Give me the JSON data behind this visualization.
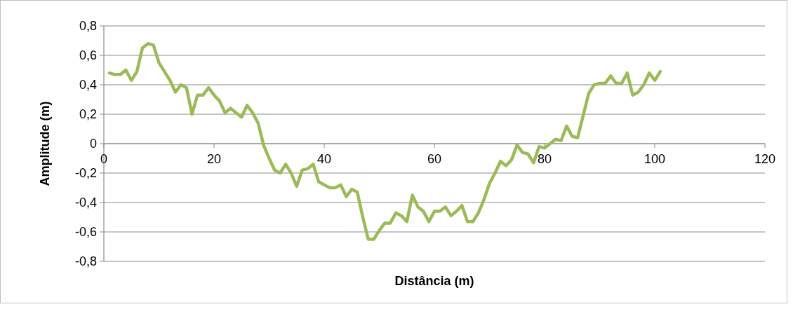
{
  "chart_data": {
    "type": "line",
    "xlabel": "Distância (m)",
    "ylabel": "Amplitude (m)",
    "x": [
      1,
      2,
      3,
      4,
      5,
      6,
      7,
      8,
      9,
      10,
      11,
      12,
      13,
      14,
      15,
      16,
      17,
      18,
      19,
      20,
      21,
      22,
      23,
      24,
      25,
      26,
      27,
      28,
      29,
      30,
      31,
      32,
      33,
      34,
      35,
      36,
      37,
      38,
      39,
      40,
      41,
      42,
      43,
      44,
      45,
      46,
      47,
      48,
      49,
      50,
      51,
      52,
      53,
      54,
      55,
      56,
      57,
      58,
      59,
      60,
      61,
      62,
      63,
      64,
      65,
      66,
      67,
      68,
      69,
      70,
      71,
      72,
      73,
      74,
      75,
      76,
      77,
      78,
      79,
      80,
      81,
      82,
      83,
      84,
      85,
      86,
      87,
      88,
      89,
      90,
      91,
      92,
      93,
      94,
      95,
      96,
      97,
      98,
      99,
      100,
      101
    ],
    "series": [
      {
        "color": "#9bbb59",
        "values": [
          0.48,
          0.47,
          0.47,
          0.5,
          0.43,
          0.49,
          0.65,
          0.68,
          0.67,
          0.55,
          0.49,
          0.43,
          0.35,
          0.4,
          0.38,
          0.2,
          0.33,
          0.33,
          0.38,
          0.33,
          0.29,
          0.21,
          0.24,
          0.21,
          0.18,
          0.26,
          0.21,
          0.14,
          -0.01,
          -0.1,
          -0.18,
          -0.2,
          -0.14,
          -0.2,
          -0.29,
          -0.18,
          -0.17,
          -0.14,
          -0.26,
          -0.28,
          -0.3,
          -0.3,
          -0.28,
          -0.36,
          -0.31,
          -0.33,
          -0.5,
          -0.65,
          -0.65,
          -0.59,
          -0.54,
          -0.54,
          -0.47,
          -0.49,
          -0.53,
          -0.35,
          -0.43,
          -0.46,
          -0.53,
          -0.46,
          -0.46,
          -0.43,
          -0.49,
          -0.46,
          -0.42,
          -0.53,
          -0.53,
          -0.47,
          -0.38,
          -0.27,
          -0.2,
          -0.12,
          -0.15,
          -0.11,
          -0.01,
          -0.06,
          -0.07,
          -0.13,
          -0.02,
          -0.03,
          0.0,
          0.03,
          0.02,
          0.12,
          0.05,
          0.04,
          0.19,
          0.34,
          0.4,
          0.41,
          0.41,
          0.46,
          0.41,
          0.41,
          0.48,
          0.33,
          0.35,
          0.4,
          0.48,
          0.43,
          0.49
        ]
      }
    ],
    "xlim": [
      0,
      120
    ],
    "xticks": [
      0,
      20,
      40,
      60,
      80,
      100,
      120
    ],
    "ylim": [
      -0.8,
      0.8
    ],
    "yticks": [
      {
        "value": -0.8,
        "label": "-0,8"
      },
      {
        "value": -0.6,
        "label": "-0,6"
      },
      {
        "value": -0.4,
        "label": "-0,4"
      },
      {
        "value": -0.2,
        "label": "-0,2"
      },
      {
        "value": 0,
        "label": "0"
      },
      {
        "value": 0.2,
        "label": "0,2"
      },
      {
        "value": 0.4,
        "label": "0,4"
      },
      {
        "value": 0.6,
        "label": "0,6"
      },
      {
        "value": 0.8,
        "label": "0,8"
      }
    ],
    "grid": "y",
    "marker": "none",
    "line_style": "solid"
  }
}
